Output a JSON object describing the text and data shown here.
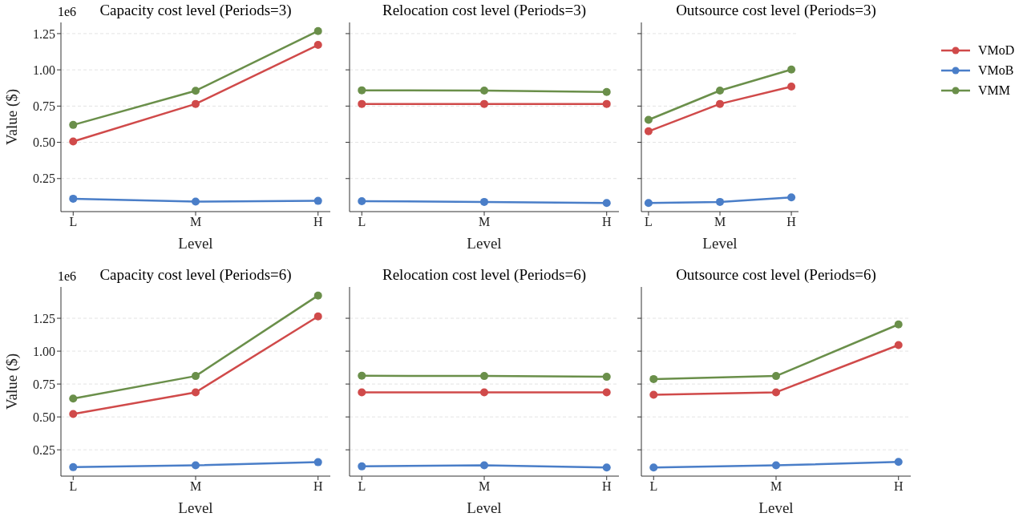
{
  "chart_data": [
    {
      "type": "line",
      "title": "Capacity cost level (Periods=3)",
      "xlabel": "Level",
      "ylabel": "Value ($)",
      "annotations": [
        "1e6"
      ],
      "categories": [
        "L",
        "M",
        "H"
      ],
      "ylim": [
        0.022,
        1.327
      ],
      "yticks": [
        {
          "value": 0.25,
          "label": "0.25"
        },
        {
          "value": 0.5,
          "label": "0.50"
        },
        {
          "value": 0.75,
          "label": "0.75"
        },
        {
          "value": 1,
          "label": "1.00"
        },
        {
          "value": 1.25,
          "label": "1.25"
        }
      ],
      "grid": "y",
      "marker": "circle",
      "line_style": "solid",
      "legend": false,
      "series": [
        {
          "color": "#d04a4a",
          "values": [
            0.506,
            0.765,
            1.172
          ]
        },
        {
          "color": "#4a7ec8",
          "values": [
            0.111,
            0.091,
            0.096
          ]
        },
        {
          "color": "#6a8f4a",
          "values": [
            0.62,
            0.856,
            1.268
          ]
        }
      ]
    },
    {
      "type": "line",
      "title": "Relocation cost level (Periods=3)",
      "xlabel": "Level",
      "categories": [
        "L",
        "M",
        "H"
      ],
      "ylim": [
        0.022,
        1.327
      ],
      "yticks": [
        {
          "value": 0.25,
          "label": null
        },
        {
          "value": 0.5,
          "label": null
        },
        {
          "value": 0.75,
          "label": null
        },
        {
          "value": 1,
          "label": null
        },
        {
          "value": 1.25,
          "label": null
        }
      ],
      "tick_labels": "x",
      "grid": "y",
      "marker": "circle",
      "line_style": "solid",
      "legend": false,
      "series": [
        {
          "color": "#d04a4a",
          "values": [
            0.765,
            0.765,
            0.765
          ]
        },
        {
          "color": "#4a7ec8",
          "values": [
            0.094,
            0.089,
            0.081
          ]
        },
        {
          "color": "#6a8f4a",
          "values": [
            0.859,
            0.857,
            0.847
          ]
        }
      ]
    },
    {
      "type": "line",
      "title": "Outsource cost level (Periods=3)",
      "xlabel": "Level",
      "categories": [
        "L",
        "M",
        "H"
      ],
      "ylim": [
        0.022,
        1.327
      ],
      "yticks": [
        {
          "value": 0.25,
          "label": null
        },
        {
          "value": 0.5,
          "label": null
        },
        {
          "value": 0.75,
          "label": null
        },
        {
          "value": 1,
          "label": null
        },
        {
          "value": 1.25,
          "label": null
        }
      ],
      "tick_labels": "x",
      "grid": "y",
      "marker": "circle",
      "line_style": "solid",
      "legend": "right",
      "series": [
        {
          "name": "VMoD",
          "color": "#d04a4a",
          "values": [
            0.576,
            0.765,
            0.885
          ]
        },
        {
          "name": "VMoB",
          "color": "#4a7ec8",
          "values": [
            0.081,
            0.089,
            0.12
          ]
        },
        {
          "name": "VMM",
          "color": "#6a8f4a",
          "values": [
            0.655,
            0.857,
            1.002
          ]
        }
      ]
    },
    {
      "type": "line",
      "title": "Capacity cost level (Periods=6)",
      "xlabel": "Level",
      "ylabel": "Value ($)",
      "annotations": [
        "1e6"
      ],
      "categories": [
        "L",
        "M",
        "H"
      ],
      "ylim": [
        0.05,
        1.488
      ],
      "yticks": [
        {
          "value": 0.25,
          "label": "0.25"
        },
        {
          "value": 0.5,
          "label": "0.50"
        },
        {
          "value": 0.75,
          "label": "0.75"
        },
        {
          "value": 1,
          "label": "1.00"
        },
        {
          "value": 1.25,
          "label": "1.25"
        }
      ],
      "grid": "y",
      "marker": "circle",
      "line_style": "solid",
      "legend": false,
      "series": [
        {
          "color": "#d04a4a",
          "values": [
            0.522,
            0.687,
            1.264
          ]
        },
        {
          "color": "#4a7ec8",
          "values": [
            0.118,
            0.132,
            0.156
          ]
        },
        {
          "color": "#6a8f4a",
          "values": [
            0.64,
            0.811,
            1.423
          ]
        }
      ]
    },
    {
      "type": "line",
      "title": "Relocation cost level (Periods=6)",
      "xlabel": "Level",
      "categories": [
        "L",
        "M",
        "H"
      ],
      "ylim": [
        0.05,
        1.488
      ],
      "yticks": [
        {
          "value": 0.25,
          "label": null
        },
        {
          "value": 0.5,
          "label": null
        },
        {
          "value": 0.75,
          "label": null
        },
        {
          "value": 1,
          "label": null
        },
        {
          "value": 1.25,
          "label": null
        }
      ],
      "tick_labels": "x",
      "grid": "y",
      "marker": "circle",
      "line_style": "solid",
      "legend": false,
      "series": [
        {
          "color": "#d04a4a",
          "values": [
            0.687,
            0.687,
            0.687
          ]
        },
        {
          "color": "#4a7ec8",
          "values": [
            0.124,
            0.132,
            0.115
          ]
        },
        {
          "color": "#6a8f4a",
          "values": [
            0.813,
            0.811,
            0.805
          ]
        }
      ]
    },
    {
      "type": "line",
      "title": "Outsource cost level (Periods=6)",
      "xlabel": "Level",
      "categories": [
        "L",
        "M",
        "H"
      ],
      "ylim": [
        0.05,
        1.488
      ],
      "yticks": [
        {
          "value": 0.25,
          "label": null
        },
        {
          "value": 0.5,
          "label": null
        },
        {
          "value": 0.75,
          "label": null
        },
        {
          "value": 1,
          "label": null
        },
        {
          "value": 1.25,
          "label": null
        }
      ],
      "tick_labels": "x",
      "grid": "y",
      "marker": "circle",
      "line_style": "solid",
      "legend": false,
      "series": [
        {
          "color": "#d04a4a",
          "values": [
            0.668,
            0.687,
            1.046
          ]
        },
        {
          "color": "#4a7ec8",
          "values": [
            0.115,
            0.132,
            0.158
          ]
        },
        {
          "color": "#6a8f4a",
          "values": [
            0.788,
            0.811,
            1.203
          ]
        }
      ]
    }
  ]
}
